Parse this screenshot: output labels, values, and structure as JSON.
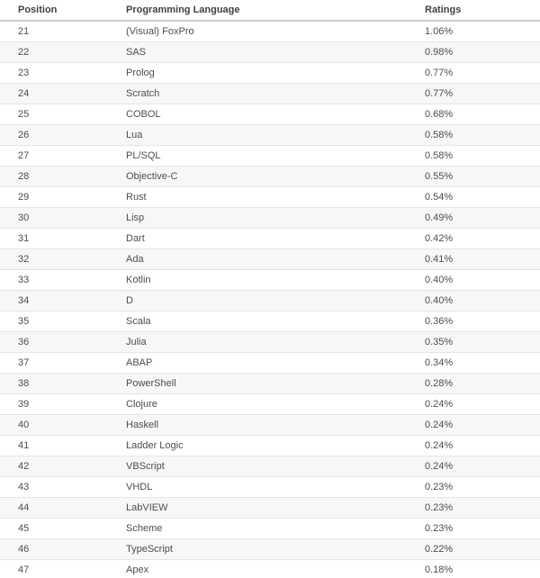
{
  "table": {
    "name": "programming-language-rankings",
    "columns": [
      {
        "key": "position",
        "label": "Position"
      },
      {
        "key": "language",
        "label": "Programming Language"
      },
      {
        "key": "rating",
        "label": "Ratings"
      }
    ],
    "rows": [
      {
        "position": "21",
        "language": "(Visual) FoxPro",
        "rating": "1.06%"
      },
      {
        "position": "22",
        "language": "SAS",
        "rating": "0.98%"
      },
      {
        "position": "23",
        "language": "Prolog",
        "rating": "0.77%"
      },
      {
        "position": "24",
        "language": "Scratch",
        "rating": "0.77%"
      },
      {
        "position": "25",
        "language": "COBOL",
        "rating": "0.68%"
      },
      {
        "position": "26",
        "language": "Lua",
        "rating": "0.58%"
      },
      {
        "position": "27",
        "language": "PL/SQL",
        "rating": "0.58%"
      },
      {
        "position": "28",
        "language": "Objective-C",
        "rating": "0.55%"
      },
      {
        "position": "29",
        "language": "Rust",
        "rating": "0.54%"
      },
      {
        "position": "30",
        "language": "Lisp",
        "rating": "0.49%"
      },
      {
        "position": "31",
        "language": "Dart",
        "rating": "0.42%"
      },
      {
        "position": "32",
        "language": "Ada",
        "rating": "0.41%"
      },
      {
        "position": "33",
        "language": "Kotlin",
        "rating": "0.40%"
      },
      {
        "position": "34",
        "language": "D",
        "rating": "0.40%"
      },
      {
        "position": "35",
        "language": "Scala",
        "rating": "0.36%"
      },
      {
        "position": "36",
        "language": "Julia",
        "rating": "0.35%"
      },
      {
        "position": "37",
        "language": "ABAP",
        "rating": "0.34%"
      },
      {
        "position": "38",
        "language": "PowerShell",
        "rating": "0.28%"
      },
      {
        "position": "39",
        "language": "Clojure",
        "rating": "0.24%"
      },
      {
        "position": "40",
        "language": "Haskell",
        "rating": "0.24%"
      },
      {
        "position": "41",
        "language": "Ladder Logic",
        "rating": "0.24%"
      },
      {
        "position": "42",
        "language": "VBScript",
        "rating": "0.24%"
      },
      {
        "position": "43",
        "language": "VHDL",
        "rating": "0.23%"
      },
      {
        "position": "44",
        "language": "LabVIEW",
        "rating": "0.23%"
      },
      {
        "position": "45",
        "language": "Scheme",
        "rating": "0.23%"
      },
      {
        "position": "46",
        "language": "TypeScript",
        "rating": "0.22%"
      },
      {
        "position": "47",
        "language": "Apex",
        "rating": "0.18%"
      }
    ]
  },
  "colors": {
    "stripe": "#f6f7f7",
    "row_border": "#e5e5e5",
    "header_border": "#cfcfcf",
    "header_text": "#414141",
    "body_text": "#4d4d4d",
    "background": "#ffffff"
  }
}
